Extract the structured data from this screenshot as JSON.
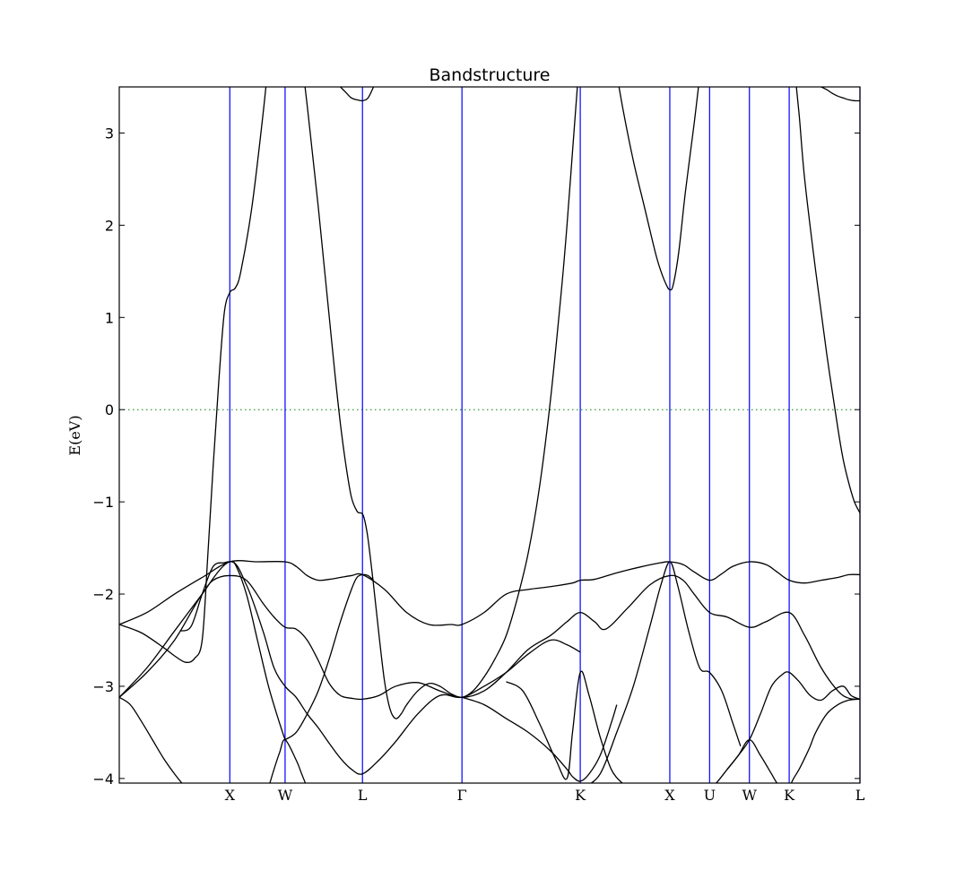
{
  "chart_data": {
    "type": "line",
    "title": "Bandstructure",
    "ylabel": "E(eV)",
    "xlabel": "",
    "ylim": [
      -4.05,
      3.5
    ],
    "yticks": [
      3,
      2,
      1,
      0,
      -1,
      -2,
      -3,
      -4
    ],
    "ytick_labels": [
      "3",
      "2",
      "1",
      "0",
      "−1",
      "−2",
      "−3",
      "−4"
    ],
    "high_symmetry_points": [
      {
        "label": "X",
        "x": 1.0
      },
      {
        "label": "W",
        "x": 1.5
      },
      {
        "label": "L",
        "x": 2.2
      },
      {
        "label": "Γ",
        "x": 3.1
      },
      {
        "label": "K",
        "x": 4.17
      },
      {
        "label": "X",
        "x": 4.98
      },
      {
        "label": "U",
        "x": 5.34
      },
      {
        "label": "W",
        "x": 5.7
      },
      {
        "label": "K",
        "x": 6.06
      },
      {
        "label": "L",
        "x": 6.7
      }
    ],
    "xlim": [
      0,
      6.7
    ],
    "fermi_level": 0,
    "colors": {
      "bands": "#000000",
      "symmetry_lines": "#0000ff",
      "fermi": "#008000"
    },
    "series": [
      {
        "x": [
          0,
          0.2,
          0.4,
          0.5,
          0.6,
          0.68,
          0.75,
          0.8,
          0.85,
          0.9,
          0.95,
          1.0,
          1.05,
          1.1,
          1.2,
          1.3,
          1.35,
          1.4
        ],
        "values": [
          -2.33,
          -2.42,
          -2.58,
          -2.67,
          -2.74,
          -2.7,
          -2.5,
          -1.6,
          -0.6,
          0.3,
          1.05,
          1.27,
          1.32,
          1.5,
          2.2,
          3.2,
          3.8,
          4.5
        ]
      },
      {
        "x": [
          1.65,
          1.7,
          1.75,
          1.8,
          1.85,
          1.9,
          1.95,
          2.0,
          2.05,
          2.1,
          2.15,
          2.18,
          2.2,
          2.22,
          2.25,
          2.3,
          2.35,
          2.4,
          2.45,
          2.5,
          2.55,
          2.6,
          2.7,
          2.8,
          2.9,
          3.0,
          3.1,
          3.2,
          3.3,
          3.4,
          3.5,
          3.6,
          3.7,
          3.8,
          3.9,
          4.0,
          4.05,
          4.1,
          4.15,
          4.2
        ],
        "values": [
          3.8,
          3.3,
          2.75,
          2.2,
          1.6,
          1.0,
          0.4,
          -0.15,
          -0.6,
          -0.95,
          -1.1,
          -1.12,
          -1.13,
          -1.2,
          -1.4,
          -1.9,
          -2.45,
          -2.95,
          -3.25,
          -3.35,
          -3.3,
          -3.2,
          -3.05,
          -2.97,
          -3.0,
          -3.08,
          -3.12,
          -3.05,
          -2.9,
          -2.7,
          -2.45,
          -2.05,
          -1.55,
          -0.85,
          0.1,
          1.3,
          2.0,
          2.8,
          3.6,
          4.4
        ]
      },
      {
        "x": [
          4.45,
          4.55,
          4.65,
          4.75,
          4.85,
          4.9,
          4.95,
          4.98,
          5.01,
          5.06,
          5.12,
          5.2,
          5.25,
          5.3,
          5.35
        ],
        "values": [
          4.0,
          3.3,
          2.7,
          2.2,
          1.7,
          1.5,
          1.35,
          1.3,
          1.35,
          1.7,
          2.35,
          3.1,
          3.6,
          4.0,
          4.5
        ]
      },
      {
        "x": [
          6.05,
          6.1,
          6.15,
          6.2,
          6.3,
          6.4,
          6.5,
          6.55,
          6.6,
          6.65,
          6.7
        ],
        "values": [
          4.3,
          3.8,
          3.2,
          2.5,
          1.5,
          0.6,
          -0.2,
          -0.55,
          -0.8,
          -1.0,
          -1.12
        ]
      },
      {
        "x": [
          0,
          0.25,
          0.5,
          0.75,
          1.0,
          1.25,
          1.5,
          1.6,
          1.7,
          1.8,
          1.9,
          2.0,
          2.1,
          2.2,
          2.4,
          2.6,
          2.8,
          3.0,
          3.1,
          3.3,
          3.5,
          3.7,
          3.9,
          4.1,
          4.17,
          4.3,
          4.5,
          4.7,
          4.9,
          4.98,
          5.1,
          5.2,
          5.34,
          5.45,
          5.55,
          5.7,
          5.85,
          5.95,
          6.06,
          6.2,
          6.35,
          6.5,
          6.6,
          6.7
        ],
        "values": [
          -2.33,
          -2.2,
          -2.0,
          -1.82,
          -1.65,
          -1.65,
          -1.65,
          -1.7,
          -1.8,
          -1.85,
          -1.84,
          -1.82,
          -1.8,
          -1.79,
          -1.95,
          -2.2,
          -2.33,
          -2.33,
          -2.33,
          -2.2,
          -2.0,
          -1.95,
          -1.92,
          -1.88,
          -1.85,
          -1.84,
          -1.77,
          -1.71,
          -1.66,
          -1.65,
          -1.68,
          -1.76,
          -1.85,
          -1.78,
          -1.7,
          -1.65,
          -1.68,
          -1.76,
          -1.85,
          -1.88,
          -1.85,
          -1.82,
          -1.79,
          -1.79
        ]
      },
      {
        "x": [
          0,
          0.25,
          0.5,
          0.75,
          0.85,
          1.0,
          1.15,
          1.3,
          1.4,
          1.5,
          1.6,
          1.7,
          1.8,
          1.9,
          2.0,
          2.1,
          2.2,
          2.35,
          2.5,
          2.7,
          2.9,
          3.1,
          3.3,
          3.5,
          3.7,
          3.9,
          4.05,
          4.17,
          4.3,
          4.4,
          4.6,
          4.8,
          4.98,
          5.1,
          5.2,
          5.34,
          5.5,
          5.7,
          5.85,
          6.06,
          6.2,
          6.35,
          6.5,
          6.6,
          6.7
        ],
        "values": [
          -3.12,
          -2.8,
          -2.4,
          -2.0,
          -1.85,
          -1.8,
          -1.85,
          -2.1,
          -2.25,
          -2.36,
          -2.38,
          -2.5,
          -2.72,
          -2.97,
          -3.1,
          -3.13,
          -3.14,
          -3.1,
          -3.0,
          -2.96,
          -3.05,
          -3.12,
          -3.05,
          -2.85,
          -2.6,
          -2.45,
          -2.3,
          -2.2,
          -2.3,
          -2.38,
          -2.15,
          -1.9,
          -1.8,
          -1.85,
          -2.0,
          -2.2,
          -2.25,
          -2.36,
          -2.3,
          -2.2,
          -2.45,
          -2.8,
          -3.05,
          -3.13,
          -3.14
        ]
      },
      {
        "x": [
          0,
          0.25,
          0.5,
          0.75,
          1.0,
          1.15,
          1.3,
          1.4,
          1.5,
          1.6,
          1.7,
          1.8,
          1.9,
          2.0,
          2.1,
          2.2,
          2.35,
          2.5,
          2.7,
          2.9,
          3.1,
          3.3,
          3.5,
          3.7,
          3.9,
          4.05,
          4.17
        ],
        "values": [
          -3.12,
          -2.85,
          -2.5,
          -2.0,
          -1.65,
          -1.9,
          -2.4,
          -2.8,
          -3.0,
          -3.12,
          -3.3,
          -3.45,
          -3.62,
          -3.78,
          -3.9,
          -3.95,
          -3.8,
          -3.6,
          -3.3,
          -3.1,
          -3.12,
          -3.0,
          -2.85,
          -2.65,
          -2.5,
          -2.55,
          -2.63
        ]
      },
      {
        "x": [
          0.55,
          0.65,
          0.75,
          0.85,
          0.95,
          1.0,
          1.05,
          1.15,
          1.25,
          1.35,
          1.45,
          1.5
        ],
        "values": [
          -2.4,
          -2.35,
          -2.0,
          -1.7,
          -1.66,
          -1.65,
          -1.68,
          -2.0,
          -2.5,
          -3.0,
          -3.4,
          -3.58
        ]
      },
      {
        "x": [
          1.5,
          1.6,
          1.7,
          1.8,
          1.9,
          2.0,
          2.1,
          2.15,
          2.2,
          2.25,
          2.3
        ],
        "values": [
          -3.58,
          -3.5,
          -3.3,
          -3.05,
          -2.7,
          -2.3,
          -1.95,
          -1.82,
          -1.79,
          -1.8,
          -1.85
        ]
      },
      {
        "x": [
          0,
          0.1,
          0.2,
          0.3,
          0.4,
          0.5,
          0.6
        ],
        "values": [
          -3.12,
          -3.2,
          -3.38,
          -3.58,
          -3.78,
          -3.95,
          -4.1
        ]
      },
      {
        "x": [
          1.35,
          1.4,
          1.45,
          1.5,
          1.6,
          1.65,
          1.7
        ],
        "values": [
          -4.1,
          -3.9,
          -3.72,
          -3.58,
          -3.8,
          -3.95,
          -4.1
        ]
      },
      {
        "x": [
          3.1,
          3.3,
          3.5,
          3.7,
          3.9,
          4.05,
          4.1,
          4.17,
          4.25,
          4.35,
          4.45,
          4.5
        ],
        "values": [
          -3.12,
          -3.2,
          -3.35,
          -3.5,
          -3.7,
          -3.9,
          -3.98,
          -4.03,
          -3.95,
          -3.75,
          -3.4,
          -3.2
        ]
      },
      {
        "x": [
          3.5,
          3.65,
          3.8,
          3.95,
          4.05,
          4.1,
          4.17,
          4.25,
          4.35,
          4.45,
          4.55,
          4.62
        ],
        "values": [
          -2.95,
          -3.05,
          -3.4,
          -3.8,
          -4.0,
          -3.5,
          -2.85,
          -3.1,
          -3.55,
          -3.9,
          -4.05,
          -4.1
        ]
      },
      {
        "x": [
          4.2,
          4.35,
          4.5,
          4.65,
          4.8,
          4.9,
          4.98,
          5.05,
          5.15,
          5.25,
          5.34,
          5.45,
          5.55,
          5.62
        ],
        "values": [
          -4.1,
          -3.95,
          -3.5,
          -3.0,
          -2.35,
          -1.9,
          -1.65,
          -1.9,
          -2.4,
          -2.8,
          -2.85,
          -3.05,
          -3.4,
          -3.65
        ]
      },
      {
        "x": [
          5.34,
          5.4,
          5.5,
          5.6,
          5.7,
          5.8,
          5.9,
          6.0,
          6.06,
          6.15,
          6.25,
          6.35,
          6.45,
          6.55,
          6.62,
          6.7
        ],
        "values": [
          -4.1,
          -4.05,
          -3.9,
          -3.75,
          -3.58,
          -3.3,
          -3.0,
          -2.87,
          -2.85,
          -2.95,
          -3.1,
          -3.15,
          -3.05,
          -3.0,
          -3.1,
          -3.14
        ]
      },
      {
        "x": [
          5.5,
          5.6,
          5.7,
          5.8,
          5.9,
          5.95,
          6.0
        ],
        "values": [
          -3.9,
          -3.75,
          -3.58,
          -3.75,
          -3.95,
          -4.05,
          -4.1
        ]
      },
      {
        "x": [
          6.06,
          6.1,
          6.15,
          6.2,
          6.25,
          6.3,
          6.4,
          6.5,
          6.6,
          6.7
        ],
        "values": [
          -4.1,
          -4.0,
          -3.9,
          -3.78,
          -3.65,
          -3.5,
          -3.3,
          -3.2,
          -3.15,
          -3.14
        ]
      },
      {
        "x": [
          2.0,
          2.05,
          2.1,
          2.15,
          2.2,
          2.25,
          2.3
        ],
        "values": [
          3.5,
          3.44,
          3.38,
          3.36,
          3.35,
          3.38,
          3.5
        ]
      },
      {
        "x": [
          6.35,
          6.4,
          6.45,
          6.5,
          6.55,
          6.6,
          6.65,
          6.7
        ],
        "values": [
          3.5,
          3.47,
          3.43,
          3.4,
          3.38,
          3.36,
          3.35,
          3.35
        ]
      }
    ]
  }
}
